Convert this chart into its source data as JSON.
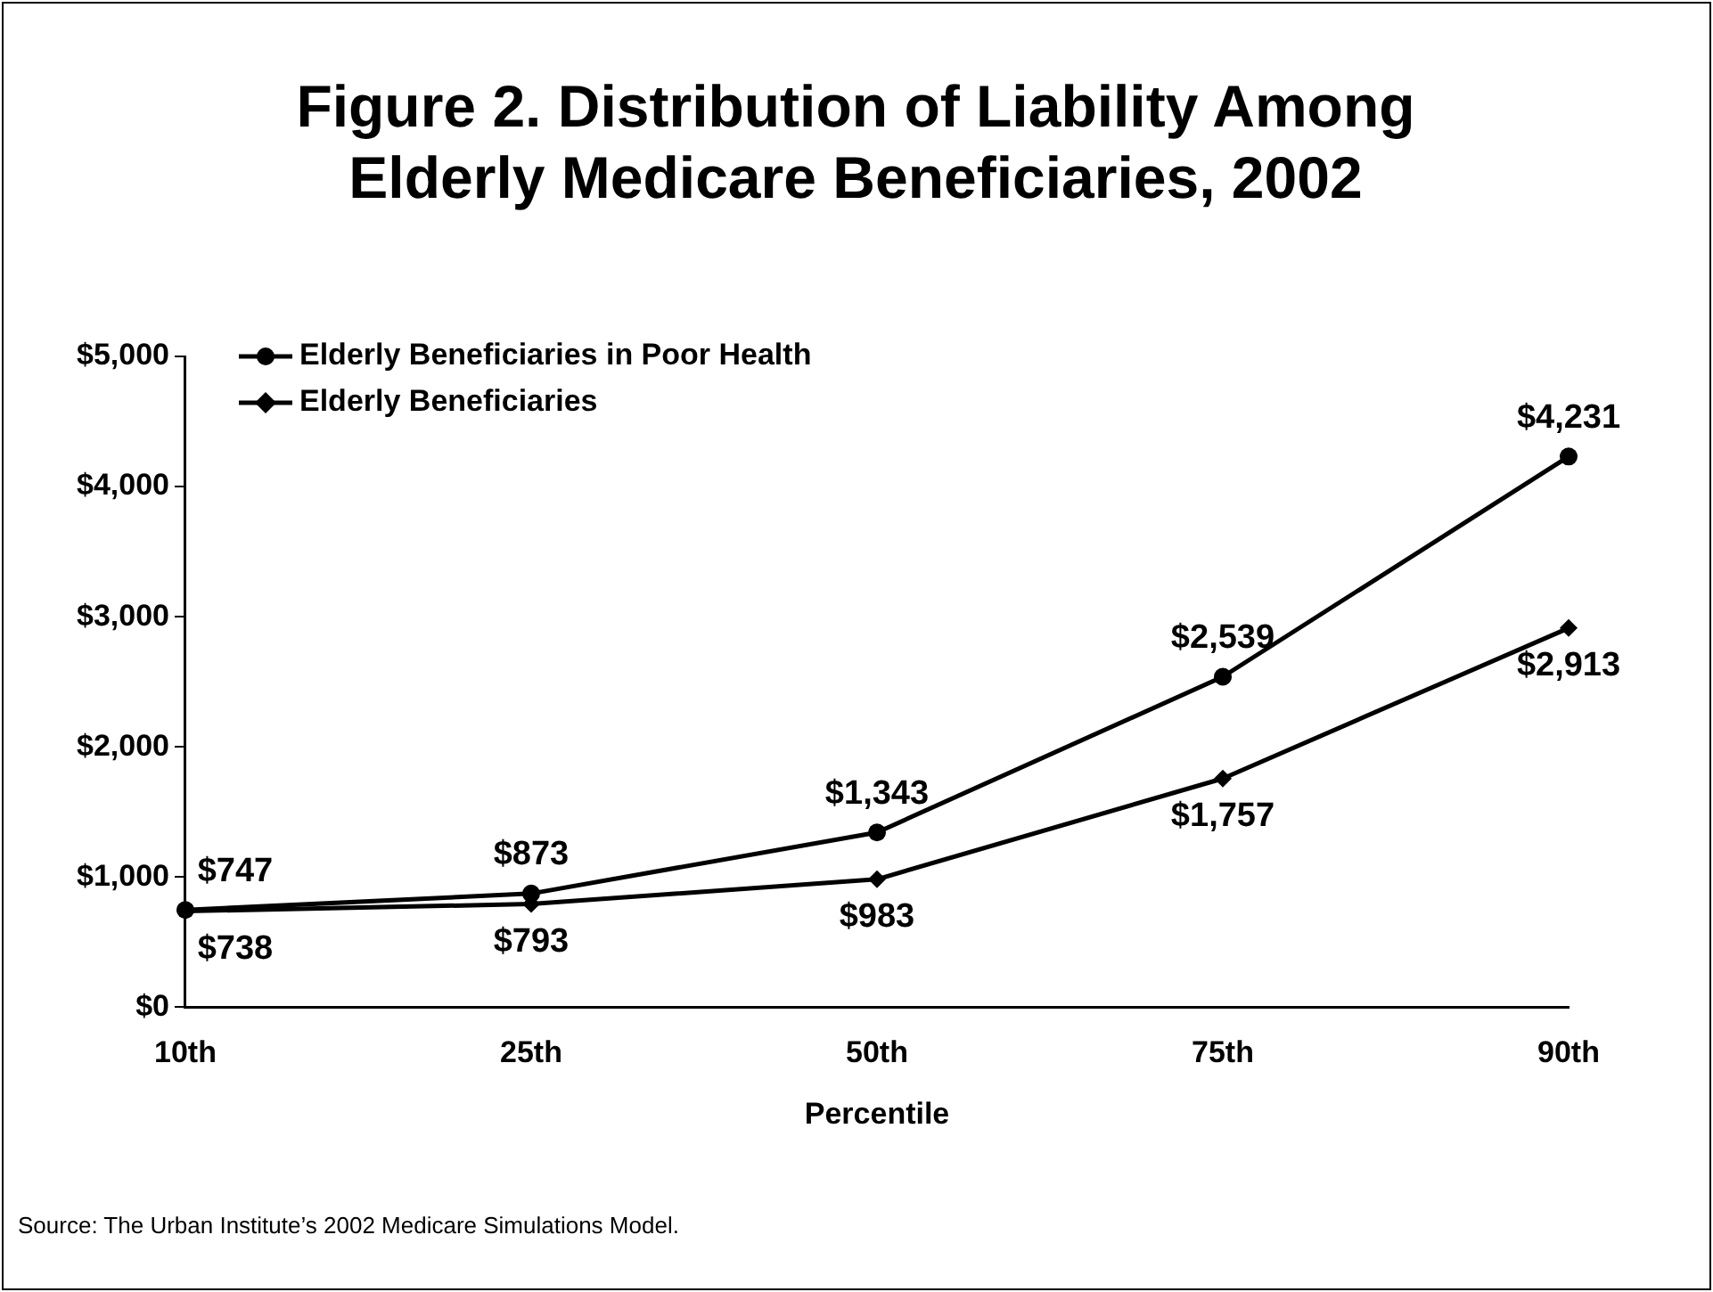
{
  "chart_data": {
    "type": "line",
    "title": "Figure 2. Distribution of Liability Among Elderly Medicare Beneficiaries, 2002",
    "xlabel": "Percentile",
    "categories": [
      "10th",
      "25th",
      "50th",
      "75th",
      "90th"
    ],
    "series": [
      {
        "name": "Elderly Beneficiaries in Poor Health",
        "color": "#000000",
        "marker": "circle",
        "values": [
          747,
          873,
          1343,
          2539,
          4231
        ],
        "value_labels": [
          "$747",
          "$873",
          "$1,343",
          "$2,539",
          "$4,231"
        ]
      },
      {
        "name": "Elderly Beneficiaries",
        "color": "#000000",
        "marker": "diamond",
        "values": [
          738,
          793,
          983,
          1757,
          2913
        ],
        "value_labels": [
          "$738",
          "$793",
          "$983",
          "$1,757",
          "$2,913"
        ]
      }
    ],
    "ylim": [
      0,
      5000
    ],
    "yticks": [
      {
        "value": 0,
        "label": "$0"
      },
      {
        "value": 1000,
        "label": "$1,000"
      },
      {
        "value": 2000,
        "label": "$2,000"
      },
      {
        "value": 3000,
        "label": "$3,000"
      },
      {
        "value": 4000,
        "label": "$4,000"
      },
      {
        "value": 5000,
        "label": "$5,000"
      }
    ],
    "grid": false,
    "legend": "top left",
    "line_style": "solid",
    "annotations": [
      "Source: The Urban Institute’s 2002 Medicare Simulations Model."
    ]
  }
}
